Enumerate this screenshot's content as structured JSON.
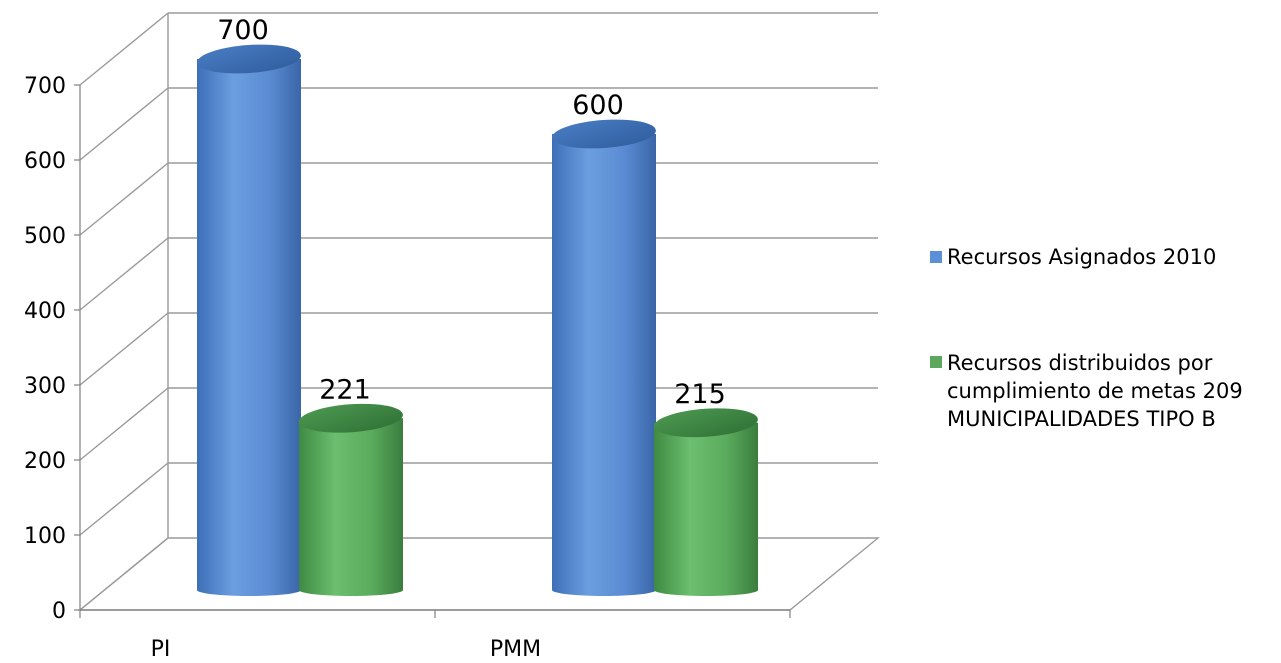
{
  "chart_data": {
    "type": "bar",
    "title": "",
    "xlabel": "",
    "ylabel": "",
    "categories": [
      "PI",
      "PMM"
    ],
    "series": [
      {
        "name": "Recursos Asignados 2010",
        "values": [
          700,
          600
        ],
        "color": "#5b8fd6"
      },
      {
        "name_lines": [
          "Recursos distribuidos por",
          "cumplimiento de metas 209",
          "MUNICIPALIDADES TIPO B"
        ],
        "values": [
          221,
          215
        ],
        "color": "#5ca65e"
      }
    ],
    "ylim": [
      0,
      700
    ],
    "yticks": [
      "0",
      "100",
      "200",
      "300",
      "400",
      "500",
      "600",
      "700"
    ],
    "data_labels": [
      [
        "700",
        "600"
      ],
      [
        "221",
        "215"
      ]
    ],
    "grid": true,
    "legend": "right",
    "style": "3d cylinder"
  }
}
